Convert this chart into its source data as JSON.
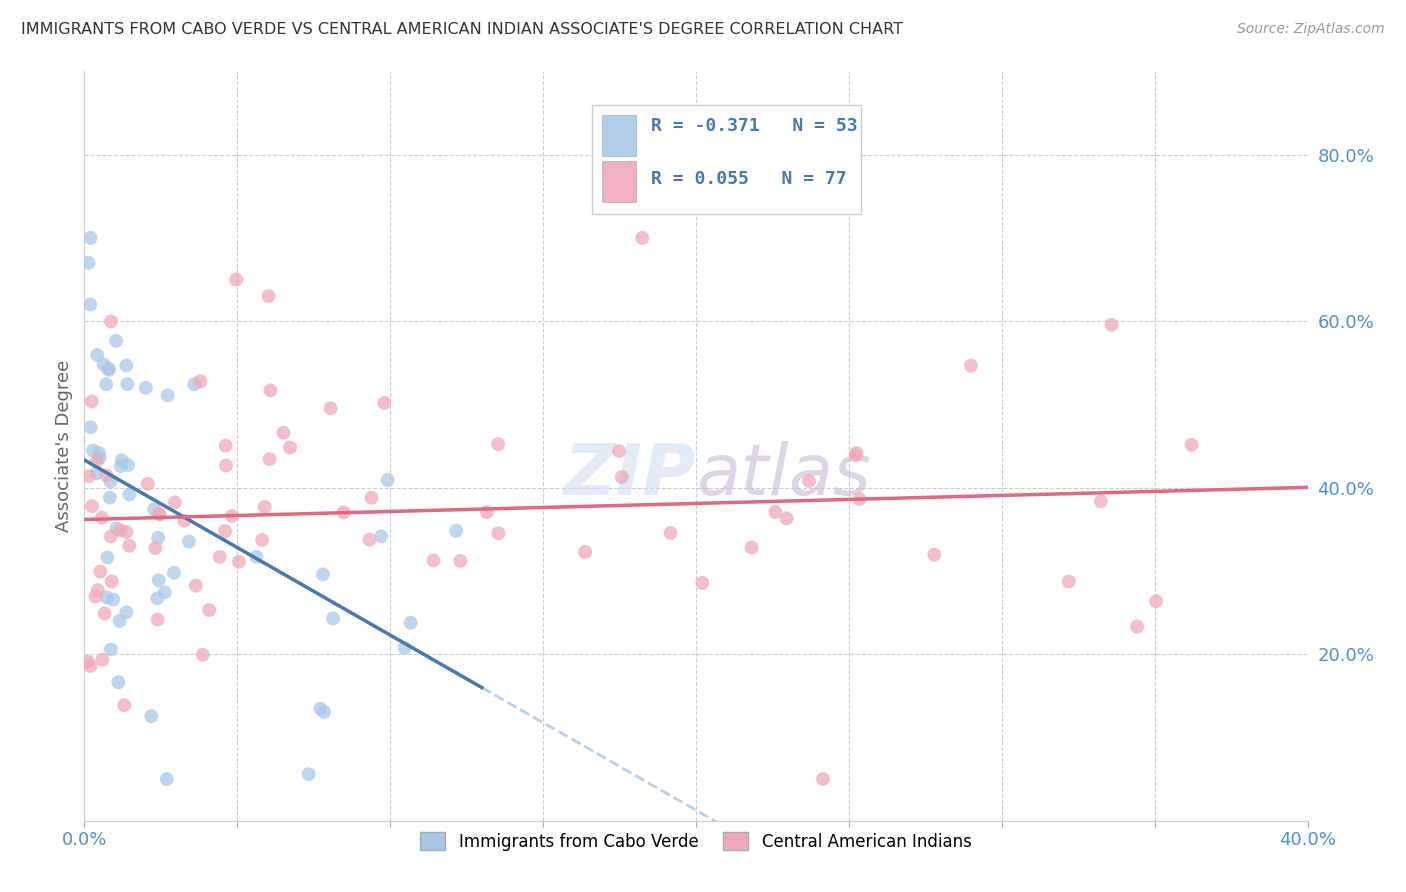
{
  "title": "IMMIGRANTS FROM CABO VERDE VS CENTRAL AMERICAN INDIAN ASSOCIATE'S DEGREE CORRELATION CHART",
  "source": "Source: ZipAtlas.com",
  "ylabel": "Associate's Degree",
  "cabo_verde_R": -0.371,
  "cabo_verde_N": 53,
  "central_american_R": 0.055,
  "central_american_N": 77,
  "cabo_verde_color": "#a8c8e8",
  "central_american_color": "#f0a8b8",
  "cabo_verde_line_color": "#4878b0",
  "central_american_line_color": "#e06880",
  "extrapolation_line_color": "#b8d0e8",
  "background_color": "#ffffff",
  "grid_color": "#cccccc",
  "title_color": "#333333",
  "axis_label_color": "#5090d0",
  "legend_text_color": "#4878b0",
  "legend_border_color": "#cccccc",
  "xlim": [
    0.0,
    0.4
  ],
  "ylim": [
    0.0,
    0.9
  ],
  "watermark_color": "#d0dff0",
  "watermark_alpha": 0.6
}
